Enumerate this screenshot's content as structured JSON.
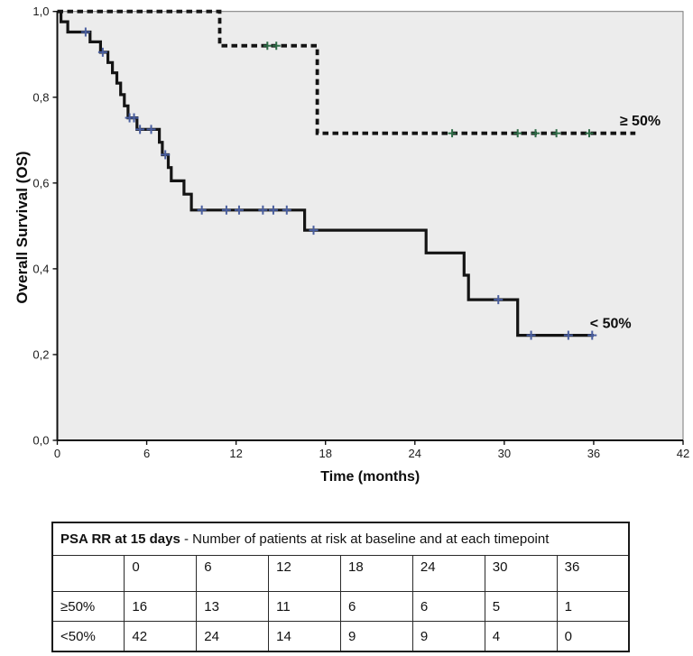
{
  "chart_data": {
    "type": "line",
    "subtype": "kaplan-meier-step",
    "title": "",
    "xlabel": "Time (months)",
    "ylabel": "Overall Survival (OS)",
    "xlim": [
      0,
      42
    ],
    "ylim": [
      0.0,
      1.0
    ],
    "grid": false,
    "plot_bg": "#ececec",
    "frame_color": "#777777",
    "axis_color": "#111111",
    "line_color": "#141414",
    "xticks": [
      0,
      6,
      12,
      18,
      24,
      30,
      36,
      42
    ],
    "xtick_labels": [
      "0",
      "6",
      "12",
      "18",
      "24",
      "30",
      "36",
      "42"
    ],
    "yticks": [
      0.0,
      0.2,
      0.4,
      0.6,
      0.8,
      1.0
    ],
    "ytick_labels": [
      "0,0",
      "0,2",
      "0,4",
      "0,6",
      "0,8",
      "1,0"
    ],
    "series": [
      {
        "id": "ge50",
        "label": "≥ 50%",
        "dash": true,
        "color": "#141414",
        "censor_color": "#2e6b46",
        "label_pos": [
          37.75,
          0.745
        ],
        "end": 38.8,
        "km_steps": [
          [
            0,
            1.0
          ],
          [
            10.9,
            0.92
          ],
          [
            17.45,
            0.716
          ]
        ],
        "censors": [
          [
            14.1,
            0.92
          ],
          [
            14.7,
            0.92
          ],
          [
            26.5,
            0.716
          ],
          [
            30.9,
            0.716
          ],
          [
            32.1,
            0.716
          ],
          [
            33.5,
            0.716
          ],
          [
            35.7,
            0.716
          ]
        ]
      },
      {
        "id": "lt50",
        "label": "< 50%",
        "dash": false,
        "color": "#141414",
        "censor_color": "#4a5fa0",
        "label_pos": [
          35.75,
          0.272
        ],
        "end": 36,
        "km_steps": [
          [
            0,
            1.0
          ],
          [
            0.25,
            0.976
          ],
          [
            0.7,
            0.952
          ],
          [
            2.2,
            0.929
          ],
          [
            2.9,
            0.905
          ],
          [
            3.4,
            0.881
          ],
          [
            3.7,
            0.857
          ],
          [
            4.0,
            0.833
          ],
          [
            4.25,
            0.806
          ],
          [
            4.5,
            0.78
          ],
          [
            4.75,
            0.752
          ],
          [
            5.35,
            0.725
          ],
          [
            6.85,
            0.695
          ],
          [
            7.05,
            0.666
          ],
          [
            7.45,
            0.636
          ],
          [
            7.65,
            0.605
          ],
          [
            8.5,
            0.574
          ],
          [
            9.0,
            0.537
          ],
          [
            16.6,
            0.49
          ],
          [
            24.75,
            0.437
          ],
          [
            27.3,
            0.385
          ],
          [
            27.6,
            0.328
          ],
          [
            30.9,
            0.245
          ]
        ],
        "censors": [
          [
            1.9,
            0.952
          ],
          [
            3.05,
            0.905
          ],
          [
            4.85,
            0.752
          ],
          [
            5.15,
            0.752
          ],
          [
            5.55,
            0.725
          ],
          [
            6.3,
            0.725
          ],
          [
            7.25,
            0.666
          ],
          [
            9.7,
            0.537
          ],
          [
            11.35,
            0.537
          ],
          [
            12.2,
            0.537
          ],
          [
            13.8,
            0.537
          ],
          [
            14.5,
            0.537
          ],
          [
            15.4,
            0.537
          ],
          [
            17.2,
            0.49
          ],
          [
            29.6,
            0.328
          ],
          [
            31.8,
            0.245
          ],
          [
            34.3,
            0.245
          ],
          [
            35.9,
            0.245
          ]
        ]
      }
    ]
  },
  "risk_table": {
    "title_bold": "PSA RR at 15 days",
    "title_rest": " - Number of patients at risk at baseline and at each timepoint",
    "columns": [
      "",
      "0",
      "6",
      "12",
      "18",
      "24",
      "30",
      "36"
    ],
    "rows": [
      {
        "label": "≥50%",
        "values": [
          "16",
          "13",
          "11",
          "6",
          "6",
          "5",
          "1"
        ]
      },
      {
        "label": "<50%",
        "values": [
          "42",
          "24",
          "14",
          "9",
          "9",
          "4",
          "0"
        ]
      }
    ]
  }
}
